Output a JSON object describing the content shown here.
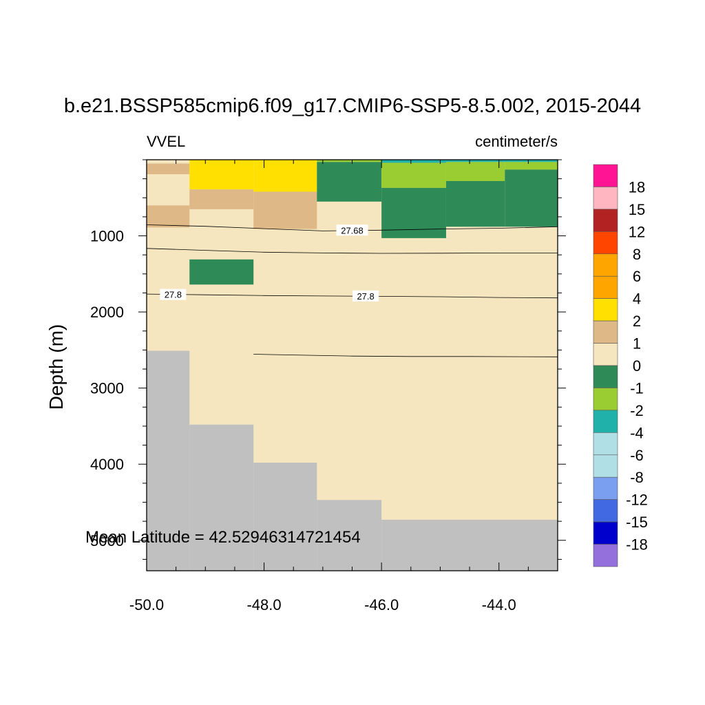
{
  "chart_data": {
    "type": "heatmap",
    "title": "b.e21.BSSP585cmip6.f09_g17.CMIP6-SSP5-8.5.002, 2015-2044",
    "left_label": "VVEL",
    "right_label": "centimeter/s",
    "ylabel": "Depth (m)",
    "xlabel": "",
    "annotation": "Mean Latitude = 42.52946314721454",
    "xlim": [
      -50.0,
      -43.0
    ],
    "ylim": [
      0,
      5400
    ],
    "x_ticks": [
      {
        "value": -50,
        "label": "-50.0"
      },
      {
        "value": -48,
        "label": "-48.0"
      },
      {
        "value": -46,
        "label": "-46.0"
      },
      {
        "value": -44,
        "label": "-44.0"
      }
    ],
    "y_ticks": [
      {
        "value": 1000,
        "label": "1000"
      },
      {
        "value": 2000,
        "label": "2000"
      },
      {
        "value": 3000,
        "label": "3000"
      },
      {
        "value": 4000,
        "label": "4000"
      },
      {
        "value": 5000,
        "label": "5000"
      }
    ],
    "x_minor_step": 0.5,
    "y_minor_step": 250,
    "colorbar": {
      "levels": [
        "18",
        "15",
        "12",
        "8",
        "6",
        "4",
        "2",
        "1",
        "0",
        "-1",
        "-2",
        "-4",
        "-6",
        "-8",
        "-12",
        "-15",
        "-18"
      ],
      "colors": [
        "#ff1493",
        "#ffb6c1",
        "#b22222",
        "#ff4500",
        "#ffa500",
        "#ffa500",
        "#ffe000",
        "#deb887",
        "#f5e6c0",
        "#2e8b57",
        "#9acd32",
        "#20b2aa",
        "#b0e0e6",
        "#b0e0e6",
        "#7b9ff0",
        "#4169e1",
        "#0000cd",
        "#9370db"
      ]
    },
    "background_color": "#f5e6c0",
    "land_color": "#c0c0c0",
    "cells": [
      {
        "x": [
          -50.0,
          -49.27
        ],
        "y": [
          0,
          50
        ],
        "v": "0 to 1"
      },
      {
        "x": [
          -50.0,
          -49.27
        ],
        "y": [
          50,
          190
        ],
        "v": "1 to 2"
      },
      {
        "x": [
          -50.0,
          -49.27
        ],
        "y": [
          600,
          890
        ],
        "v": "1 to 2"
      },
      {
        "x": [
          -49.27,
          -48.18
        ],
        "y": [
          0,
          390
        ],
        "v": "2 to 4"
      },
      {
        "x": [
          -49.27,
          -48.18
        ],
        "y": [
          390,
          650
        ],
        "v": "1 to 2"
      },
      {
        "x": [
          -48.18,
          -47.1
        ],
        "y": [
          0,
          420
        ],
        "v": "2 to 4"
      },
      {
        "x": [
          -48.18,
          -47.1
        ],
        "y": [
          420,
          910
        ],
        "v": "1 to 2"
      },
      {
        "x": [
          -47.1,
          -46.0
        ],
        "y": [
          0,
          30
        ],
        "v": "-2 to -1"
      },
      {
        "x": [
          -47.1,
          -46.0
        ],
        "y": [
          30,
          550
        ],
        "v": "-1 to 0"
      },
      {
        "x": [
          -46.0,
          -44.9
        ],
        "y": [
          0,
          40
        ],
        "v": "-4 to -2"
      },
      {
        "x": [
          -46.0,
          -44.9
        ],
        "y": [
          40,
          370
        ],
        "v": "-2 to -1"
      },
      {
        "x": [
          -46.0,
          -44.9
        ],
        "y": [
          370,
          1030
        ],
        "v": "-1 to 0"
      },
      {
        "x": [
          -44.9,
          -43.0
        ],
        "y": [
          0,
          30
        ],
        "v": "-4 to -2"
      },
      {
        "x": [
          -44.9,
          -43.9
        ],
        "y": [
          30,
          280
        ],
        "v": "-2 to -1"
      },
      {
        "x": [
          -43.9,
          -43.0
        ],
        "y": [
          30,
          130
        ],
        "v": "-2 to -1"
      },
      {
        "x": [
          -44.9,
          -43.9
        ],
        "y": [
          280,
          880
        ],
        "v": "-1 to 0"
      },
      {
        "x": [
          -43.9,
          -43.0
        ],
        "y": [
          130,
          880
        ],
        "v": "-1 to 0"
      },
      {
        "x": [
          -49.27,
          -48.18
        ],
        "y": [
          1310,
          1640
        ],
        "v": "-1 to 0"
      }
    ],
    "bathymetry": [
      {
        "x": [
          -50.0,
          -49.27
        ],
        "top": 2510
      },
      {
        "x": [
          -49.27,
          -48.18
        ],
        "top": 3480
      },
      {
        "x": [
          -48.18,
          -47.1
        ],
        "top": 3980
      },
      {
        "x": [
          -47.1,
          -46.0
        ],
        "top": 4470
      },
      {
        "x": [
          -46.0,
          -43.0
        ],
        "top": 4730
      }
    ],
    "contours": [
      {
        "label": "27.68",
        "points": [
          [
            -50.0,
            855
          ],
          [
            -49.0,
            875
          ],
          [
            -48.0,
            905
          ],
          [
            -47.0,
            935
          ],
          [
            -46.0,
            925
          ],
          [
            -45.0,
            910
          ],
          [
            -44.0,
            900
          ],
          [
            -43.0,
            880
          ]
        ],
        "label_at": [
          -46.5,
          925
        ]
      },
      {
        "label": "",
        "points": [
          [
            -50.0,
            1165
          ],
          [
            -49.0,
            1190
          ],
          [
            -48.0,
            1215
          ],
          [
            -47.0,
            1225
          ],
          [
            -46.0,
            1230
          ],
          [
            -45.0,
            1228
          ],
          [
            -44.0,
            1225
          ],
          [
            -43.0,
            1225
          ]
        ],
        "label_at": null
      },
      {
        "label": "27.8",
        "points": [
          [
            -50.0,
            1765
          ],
          [
            -49.0,
            1775
          ],
          [
            -48.0,
            1785
          ],
          [
            -47.0,
            1790
          ],
          [
            -46.0,
            1795
          ],
          [
            -45.0,
            1800
          ],
          [
            -44.0,
            1810
          ],
          [
            -43.0,
            1815
          ]
        ],
        "label_at": [
          -49.55,
          1770
        ],
        "label_at_2": [
          -46.27,
          1790
        ]
      },
      {
        "label": "",
        "points": [
          [
            -48.18,
            2555
          ],
          [
            -47.5,
            2565
          ],
          [
            -46.5,
            2580
          ],
          [
            -45.5,
            2585
          ],
          [
            -44.5,
            2585
          ],
          [
            -43.0,
            2590
          ]
        ],
        "label_at": null
      }
    ]
  }
}
